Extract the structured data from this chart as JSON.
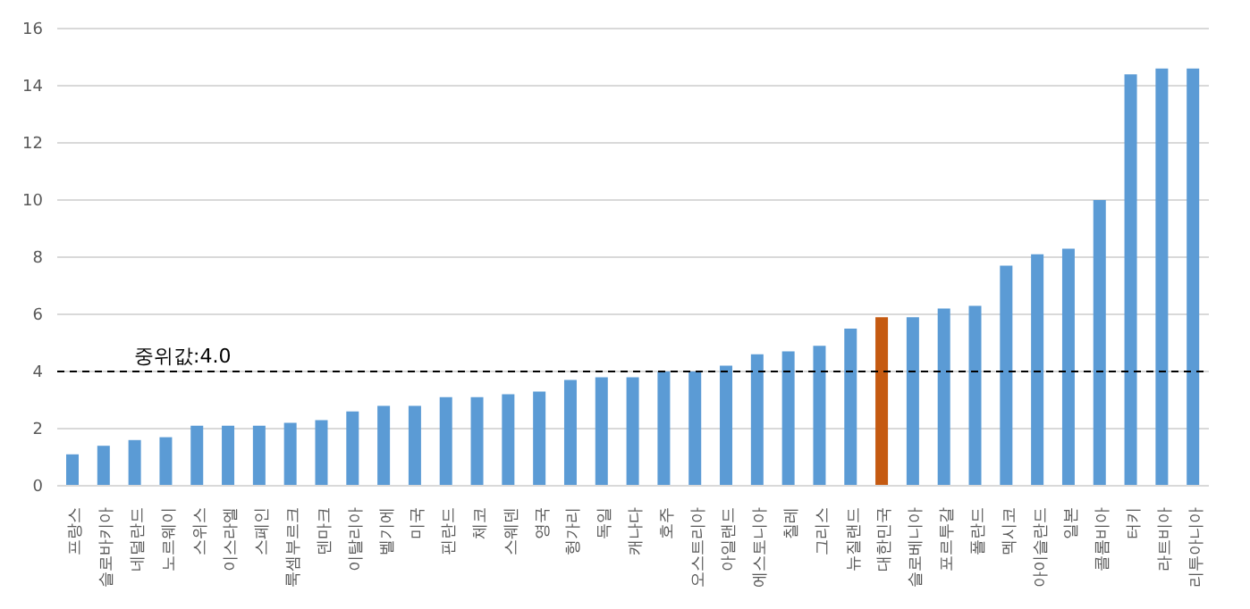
{
  "chart_data": {
    "type": "bar",
    "categories": [
      "프랑스",
      "슬로바키아",
      "네덜란드",
      "노르웨이",
      "스위스",
      "이스라엘",
      "스페인",
      "룩셈부르크",
      "덴마크",
      "이탈리아",
      "벨기에",
      "미국",
      "핀란드",
      "체코",
      "스웨덴",
      "영국",
      "헝가리",
      "독일",
      "캐나다",
      "호주",
      "오스트리아",
      "아일랜드",
      "에스토니아",
      "칠레",
      "그리스",
      "뉴질랜드",
      "대한민국",
      "슬로베니아",
      "포르투갈",
      "폴란드",
      "멕시코",
      "아이슬란드",
      "일본",
      "콜롬비아",
      "터키",
      "라트비아",
      "리투아니아"
    ],
    "values": [
      1.1,
      1.4,
      1.6,
      1.7,
      2.1,
      2.1,
      2.1,
      2.2,
      2.3,
      2.6,
      2.8,
      2.8,
      3.1,
      3.1,
      3.2,
      3.3,
      3.7,
      3.8,
      3.8,
      4.0,
      4.0,
      4.2,
      4.6,
      4.7,
      4.9,
      5.5,
      5.9,
      5.9,
      6.2,
      6.3,
      7.7,
      8.1,
      8.3,
      10.0,
      14.4,
      14.6,
      14.6
    ],
    "colors": [
      "#5b9bd5",
      "#5b9bd5",
      "#5b9bd5",
      "#5b9bd5",
      "#5b9bd5",
      "#5b9bd5",
      "#5b9bd5",
      "#5b9bd5",
      "#5b9bd5",
      "#5b9bd5",
      "#5b9bd5",
      "#5b9bd5",
      "#5b9bd5",
      "#5b9bd5",
      "#5b9bd5",
      "#5b9bd5",
      "#5b9bd5",
      "#5b9bd5",
      "#5b9bd5",
      "#5b9bd5",
      "#5b9bd5",
      "#5b9bd5",
      "#5b9bd5",
      "#5b9bd5",
      "#5b9bd5",
      "#5b9bd5",
      "#c55a11",
      "#5b9bd5",
      "#5b9bd5",
      "#5b9bd5",
      "#5b9bd5",
      "#5b9bd5",
      "#5b9bd5",
      "#5b9bd5",
      "#5b9bd5",
      "#5b9bd5",
      "#5b9bd5"
    ],
    "ylim": [
      0,
      16
    ],
    "yticks": [
      0,
      2,
      4,
      6,
      8,
      10,
      12,
      14,
      16
    ],
    "grid": "y",
    "ref_lines": [
      {
        "axis": "y",
        "value": 4.0,
        "label": "중위값:4.0",
        "color": "#000000",
        "line_style": "dashed"
      }
    ]
  }
}
